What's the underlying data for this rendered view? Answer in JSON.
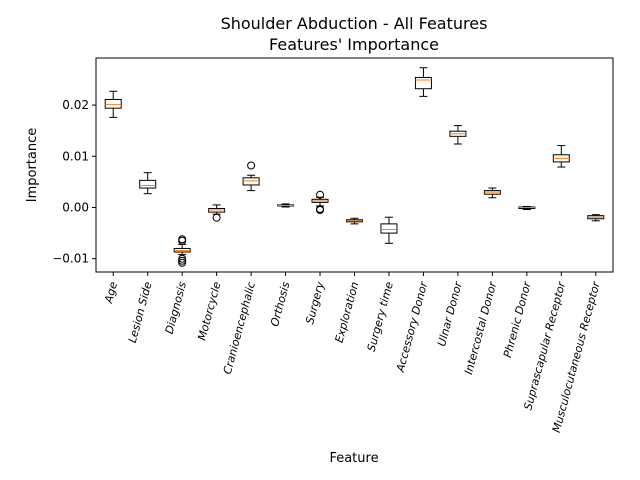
{
  "chart_data": {
    "type": "box",
    "title": "Shoulder Abduction - All Features",
    "subtitle": "Features' Importance",
    "xlabel": "Feature",
    "ylabel": "Importance",
    "ylim": [
      -0.0126,
      0.0292
    ],
    "yticks": [
      -0.01,
      0.0,
      0.01,
      0.02
    ],
    "ytick_labels": [
      "−0.01",
      "0.00",
      "0.01",
      "0.02"
    ],
    "box_color": "#000000",
    "median_color": "#ff7f0e",
    "grid": false,
    "categories": [
      "Age",
      "Lesion Side",
      "Diagnosis",
      "Motorcycle",
      "Cranioencephalic",
      "Orthosis",
      "Surgery",
      "Exploration",
      "Surgery time",
      "Accessory Donor",
      "Ulnar Donor",
      "Intercostal Donor",
      "Phrenic Donor",
      "Suprascapular Receptor",
      "Musculocutaneous Receptor"
    ],
    "boxes": [
      {
        "whislo": 0.0176,
        "q1": 0.0194,
        "med": 0.0201,
        "q3": 0.0211,
        "whishi": 0.0227,
        "fliers": []
      },
      {
        "whislo": 0.0027,
        "q1": 0.0038,
        "med": 0.0043,
        "q3": 0.0053,
        "whishi": 0.0068,
        "fliers": []
      },
      {
        "whislo": -0.0092,
        "q1": -0.0087,
        "med": -0.0084,
        "q3": -0.008,
        "whishi": -0.0072,
        "fliers": [
          -0.0062,
          -0.0065,
          -0.01,
          -0.0104,
          -0.0108
        ]
      },
      {
        "whislo": -0.0013,
        "q1": -0.0009,
        "med": -0.0005,
        "q3": -0.0002,
        "whishi": 0.0005,
        "fliers": [
          -0.002
        ]
      },
      {
        "whislo": 0.0033,
        "q1": 0.0044,
        "med": 0.0052,
        "q3": 0.0058,
        "whishi": 0.0063,
        "fliers": [
          0.0082
        ]
      },
      {
        "whislo": 0.0001,
        "q1": 0.0003,
        "med": 0.0004,
        "q3": 0.0005,
        "whishi": 0.0007,
        "fliers": []
      },
      {
        "whislo": 0.0003,
        "q1": 0.001,
        "med": 0.0013,
        "q3": 0.0016,
        "whishi": 0.002,
        "fliers": [
          0.0025,
          -0.0003,
          -0.0005
        ]
      },
      {
        "whislo": -0.0032,
        "q1": -0.0028,
        "med": -0.0026,
        "q3": -0.0024,
        "whishi": -0.0021,
        "fliers": []
      },
      {
        "whislo": -0.007,
        "q1": -0.005,
        "med": -0.0043,
        "q3": -0.0032,
        "whishi": -0.0019,
        "fliers": []
      },
      {
        "whislo": 0.0217,
        "q1": 0.0232,
        "med": 0.0249,
        "q3": 0.0254,
        "whishi": 0.0273,
        "fliers": []
      },
      {
        "whislo": 0.0124,
        "q1": 0.0139,
        "med": 0.0144,
        "q3": 0.0149,
        "whishi": 0.016,
        "fliers": []
      },
      {
        "whislo": 0.0019,
        "q1": 0.0026,
        "med": 0.003,
        "q3": 0.0033,
        "whishi": 0.0038,
        "fliers": []
      },
      {
        "whislo": -0.0004,
        "q1": -0.0002,
        "med": 0.0,
        "q3": 0.0001,
        "whishi": 0.0002,
        "fliers": []
      },
      {
        "whislo": 0.0079,
        "q1": 0.0089,
        "med": 0.0096,
        "q3": 0.0103,
        "whishi": 0.0121,
        "fliers": []
      },
      {
        "whislo": -0.0026,
        "q1": -0.0022,
        "med": -0.0019,
        "q3": -0.0016,
        "whishi": -0.0014,
        "fliers": []
      }
    ]
  }
}
